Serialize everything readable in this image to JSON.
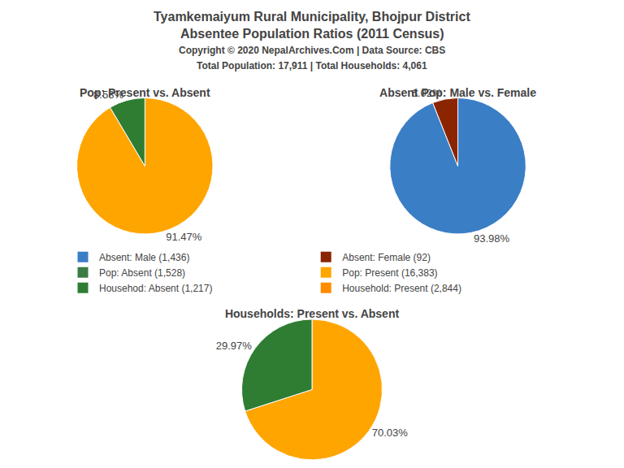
{
  "title": "Tyamkemaiyum Rural Municipality, Bhojpur District",
  "subtitle": "Absentee Population Ratios (2011 Census)",
  "annotations": [
    "Copyright © 2020 NepalArchives.Com | Data Source: CBS",
    "Total Population: 17,911 | Total Households: 4,061"
  ],
  "series": [
    {
      "name": "Absent: Male (1,436)",
      "color": "#3A7EC6"
    },
    {
      "name": "Absent: Female (92)",
      "color": "#8B2500"
    },
    {
      "name": "Pop: Absent (1,528)",
      "color": "#3A7D44"
    },
    {
      "name": "Pop: Present (16,383)",
      "color": "#FFA500"
    },
    {
      "name": "Househod: Absent (1,217)",
      "color": "#2E7D32"
    },
    {
      "name": "Household: Present (2,844)",
      "color": "#FF8C00"
    }
  ],
  "chart_data": [
    {
      "type": "pie",
      "title": "Pop: Present vs. Absent",
      "values": [
        91.47,
        8.53
      ],
      "value_labels": [
        "91.47%",
        "8.53%"
      ],
      "colors": [
        "#FFA500",
        "#2E7D32"
      ],
      "data_labels": true
    },
    {
      "type": "pie",
      "title": "Absent Pop: Male vs. Female",
      "values": [
        93.98,
        6.02
      ],
      "value_labels": [
        "93.98%",
        "6.02%"
      ],
      "colors": [
        "#3A7EC6",
        "#8B2500"
      ],
      "data_labels": true
    },
    {
      "type": "pie",
      "title": "Households: Present vs. Absent",
      "values": [
        70.03,
        29.97
      ],
      "value_labels": [
        "70.03%",
        "29.97%"
      ],
      "colors": [
        "#FFA500",
        "#2E7D32"
      ],
      "data_labels": true
    }
  ]
}
